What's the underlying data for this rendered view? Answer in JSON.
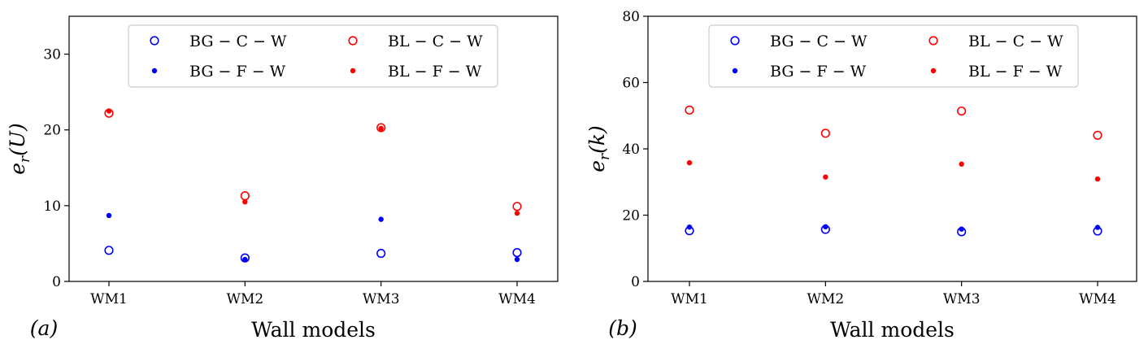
{
  "chart_data": [
    {
      "type": "scatter",
      "panel_label": "(a)",
      "xlabel": "Wall models",
      "ylabel": "e_r(U)",
      "categories": [
        "WM1",
        "WM2",
        "WM3",
        "WM4"
      ],
      "ylim": [
        0,
        35
      ],
      "yticks": [
        0,
        10,
        20,
        30
      ],
      "legend_position": "upper-center",
      "series": [
        {
          "name": "BG − C − W",
          "color": "#0000ff",
          "marker": "open-circle",
          "values": [
            4.1,
            3.1,
            3.7,
            3.8
          ]
        },
        {
          "name": "BL − C − W",
          "color": "#ff0000",
          "marker": "open-circle",
          "values": [
            22.2,
            11.3,
            20.3,
            9.9
          ]
        },
        {
          "name": "BG − F − W",
          "color": "#0000ff",
          "marker": "dot",
          "values": [
            8.7,
            2.9,
            8.2,
            2.9
          ]
        },
        {
          "name": "BL − F − W",
          "color": "#ff0000",
          "marker": "dot",
          "values": [
            22.5,
            10.5,
            20.2,
            9.0
          ]
        }
      ]
    },
    {
      "type": "scatter",
      "panel_label": "(b)",
      "xlabel": "Wall models",
      "ylabel": "e_r(k)",
      "categories": [
        "WM1",
        "WM2",
        "WM3",
        "WM4"
      ],
      "ylim": [
        0,
        80
      ],
      "yticks": [
        0,
        20,
        40,
        60,
        80
      ],
      "legend_position": "upper-center",
      "series": [
        {
          "name": "BG − C − W",
          "color": "#0000ff",
          "marker": "open-circle",
          "values": [
            15.3,
            15.7,
            15.0,
            15.2
          ]
        },
        {
          "name": "BL − C − W",
          "color": "#ff0000",
          "marker": "open-circle",
          "values": [
            51.7,
            44.7,
            51.4,
            44.1
          ]
        },
        {
          "name": "BG − F − W",
          "color": "#0000ff",
          "marker": "dot",
          "values": [
            16.4,
            16.5,
            15.8,
            16.3
          ]
        },
        {
          "name": "BL − F − W",
          "color": "#ff0000",
          "marker": "dot",
          "values": [
            35.8,
            31.5,
            35.4,
            30.9
          ]
        }
      ]
    }
  ]
}
